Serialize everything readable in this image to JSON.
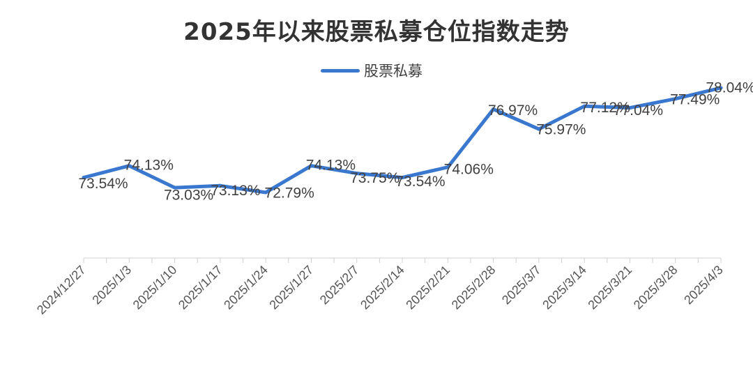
{
  "chart_data": {
    "type": "line",
    "title": "2025年以来股票私募仓位指数走势",
    "xlabel": "",
    "ylabel": "",
    "ylim": [
      69.5,
      78.6
    ],
    "grid": false,
    "legend_position": "top",
    "categories": [
      "2024/12/27",
      "2025/1/3",
      "2025/1/10",
      "2025/1/17",
      "2025/1/24",
      "2025/1/27",
      "2025/2/7",
      "2025/2/14",
      "2025/2/21",
      "2025/2/28",
      "2025/3/7",
      "2025/3/14",
      "2025/3/21",
      "2025/3/28",
      "2025/4/3"
    ],
    "series": [
      {
        "name": "股票私募",
        "color": "#3a78d0",
        "values": [
          73.54,
          74.13,
          73.03,
          73.13,
          72.79,
          74.13,
          73.75,
          73.54,
          74.06,
          76.97,
          75.97,
          77.12,
          77.04,
          77.49,
          78.04
        ],
        "labels": [
          "73.54%",
          "74.13%",
          "73.03%",
          "73.13%",
          "72.79%",
          "74.13%",
          "73.75%",
          "73.54%",
          "74.06%",
          "76.97%",
          "75.97%",
          "77.12%",
          "77.04%",
          "77.49%",
          "78.04%"
        ]
      }
    ]
  }
}
